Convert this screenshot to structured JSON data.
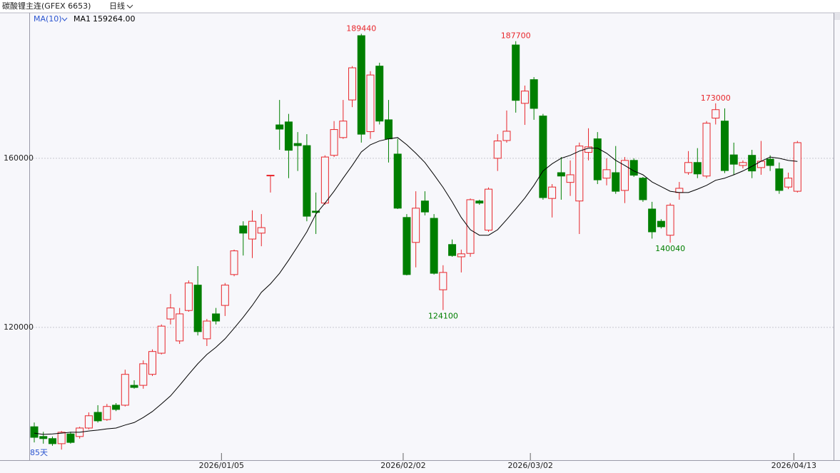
{
  "chart_data": {
    "type": "candlestick",
    "title": "碳酸锂主连(GFEX 6653)",
    "period": "日线",
    "count_label": "85天",
    "categories": [
      null,
      null,
      null,
      null,
      null,
      null,
      null,
      null,
      null,
      null,
      null,
      null,
      null,
      null,
      null,
      null,
      null,
      null,
      null,
      null,
      null,
      "2026/01/05",
      null,
      null,
      null,
      null,
      null,
      null,
      null,
      null,
      null,
      null,
      null,
      null,
      null,
      null,
      null,
      null,
      null,
      null,
      null,
      "2026/02/02",
      null,
      null,
      null,
      null,
      null,
      null,
      null,
      null,
      null,
      null,
      null,
      null,
      null,
      "2026/03/02",
      null,
      null,
      null,
      null,
      null,
      null,
      null,
      null,
      null,
      null,
      null,
      null,
      null,
      null,
      null,
      null,
      null,
      null,
      null,
      null,
      null,
      null,
      null,
      null,
      null,
      null,
      null,
      null,
      "2026/04/13"
    ],
    "series": [
      {
        "up_color": "#e8262b",
        "down_color": "#007f00",
        "open": [
          96500,
          94200,
          93700,
          92500,
          94800,
          94200,
          96200,
          99900,
          98200,
          101600,
          101600,
          106300,
          106300,
          108900,
          113900,
          122000,
          116800,
          124000,
          130000,
          117300,
          123200,
          125200,
          132500,
          144000,
          140900,
          142300,
          156000,
          167900,
          168600,
          163500,
          163000,
          147500,
          149400,
          160700,
          164900,
          173800,
          189000,
          166300,
          181800,
          169100,
          161000,
          146000,
          140100,
          149900,
          145800,
          128900,
          139600,
          136700,
          137500,
          149900,
          143000,
          160000,
          164200,
          186800,
          173000,
          178600,
          170000,
          150500,
          156600,
          154300,
          149900,
          161400,
          164600,
          155300,
          156600,
          152400,
          159500,
          155300,
          148000,
          145100,
          141800,
          151900,
          156600,
          159000,
          155800,
          169500,
          168800,
          160800,
          158300,
          160700,
          157800,
          159800,
          157500,
          153200,
          152200
        ],
        "high": [
          97500,
          95300,
          94200,
          95500,
          95300,
          96500,
          99900,
          101600,
          101900,
          102100,
          110000,
          107500,
          112200,
          114800,
          120700,
          127900,
          124600,
          131100,
          134500,
          122000,
          124600,
          130500,
          138400,
          145100,
          147700,
          146800,
          156000,
          173800,
          170500,
          166200,
          165700,
          151900,
          160700,
          168800,
          173800,
          181800,
          189440,
          180600,
          182600,
          173800,
          164600,
          146800,
          152200,
          152200,
          146800,
          134700,
          140800,
          138400,
          150500,
          150200,
          153100,
          165700,
          171300,
          187700,
          177200,
          179200,
          170500,
          153900,
          160300,
          159500,
          163700,
          167100,
          166200,
          160000,
          162900,
          160300,
          160000,
          155600,
          149700,
          145600,
          149400,
          154400,
          161700,
          162400,
          168800,
          173000,
          171800,
          163700,
          159500,
          162000,
          164100,
          160700,
          159000,
          156600,
          164100
        ],
        "low": [
          92800,
          92500,
          92000,
          91100,
          92500,
          93700,
          95900,
          97500,
          97900,
          100200,
          101300,
          105500,
          105500,
          108500,
          113600,
          120700,
          116100,
          123700,
          118100,
          115600,
          120700,
          122700,
          132100,
          137000,
          136400,
          139200,
          151900,
          162000,
          155300,
          157000,
          145100,
          142100,
          149000,
          160300,
          164600,
          172100,
          163700,
          164600,
          168000,
          159000,
          148000,
          132300,
          134200,
          146500,
          132500,
          124100,
          136700,
          133000,
          136700,
          149000,
          142600,
          157000,
          163700,
          170800,
          167900,
          169100,
          150200,
          146000,
          150200,
          151100,
          142100,
          159500,
          153900,
          153600,
          151600,
          149400,
          155600,
          149700,
          141000,
          143400,
          140040,
          150200,
          156100,
          155300,
          155300,
          168000,
          156500,
          156100,
          157600,
          155300,
          156100,
          157000,
          151600,
          152700,
          151900
        ],
        "close": [
          94000,
          93700,
          92500,
          95200,
          92800,
          96200,
          99100,
          97900,
          101300,
          100600,
          108900,
          105800,
          111400,
          114300,
          120300,
          124600,
          123200,
          130500,
          119000,
          121500,
          121500,
          130000,
          138100,
          142300,
          145100,
          143600,
          156000,
          166900,
          161900,
          163000,
          146300,
          147200,
          160300,
          166800,
          168800,
          181400,
          165700,
          179700,
          168800,
          164600,
          148200,
          132500,
          148200,
          147300,
          132800,
          133000,
          137000,
          137400,
          150200,
          149400,
          152700,
          164100,
          166400,
          173700,
          175900,
          171800,
          150700,
          153200,
          155800,
          156100,
          162900,
          162700,
          154900,
          157300,
          152200,
          159500,
          156000,
          150200,
          142600,
          143800,
          148900,
          152900,
          159000,
          156300,
          168300,
          171500,
          157100,
          158600,
          159000,
          157000,
          159300,
          158300,
          152400,
          155300,
          163700
        ]
      }
    ],
    "ma": {
      "legend": "MA(10)",
      "name": "MA1",
      "value_label": "159264.00",
      "color": "#000000",
      "legend_color": "#2b55d0",
      "values": [
        95000,
        94700,
        94800,
        95000,
        95200,
        95200,
        95500,
        95700,
        96000,
        96200,
        96900,
        97500,
        98700,
        100100,
        101900,
        103800,
        106300,
        108900,
        111400,
        113600,
        115300,
        117300,
        119800,
        122400,
        125200,
        128300,
        130300,
        132800,
        135900,
        139200,
        142600,
        146800,
        149400,
        152200,
        155300,
        158300,
        161500,
        163200,
        164100,
        164600,
        164900,
        163200,
        161200,
        159000,
        156100,
        153100,
        149700,
        146000,
        143100,
        141800,
        141800,
        143100,
        145500,
        148000,
        150600,
        153600,
        157000,
        158700,
        160000,
        160700,
        161700,
        162400,
        162400,
        161200,
        159500,
        158300,
        157000,
        156100,
        154400,
        153300,
        152200,
        151900,
        151900,
        152700,
        153600,
        154800,
        155300,
        156100,
        157000,
        158100,
        159300,
        160300,
        160000,
        159500,
        159264
      ]
    },
    "marked_highs": [
      36,
      53,
      75
    ],
    "marked_lows": [
      45,
      70
    ],
    "ylim": [
      88600,
      194400
    ],
    "yticks": [
      120000,
      160000
    ],
    "grid": true
  }
}
